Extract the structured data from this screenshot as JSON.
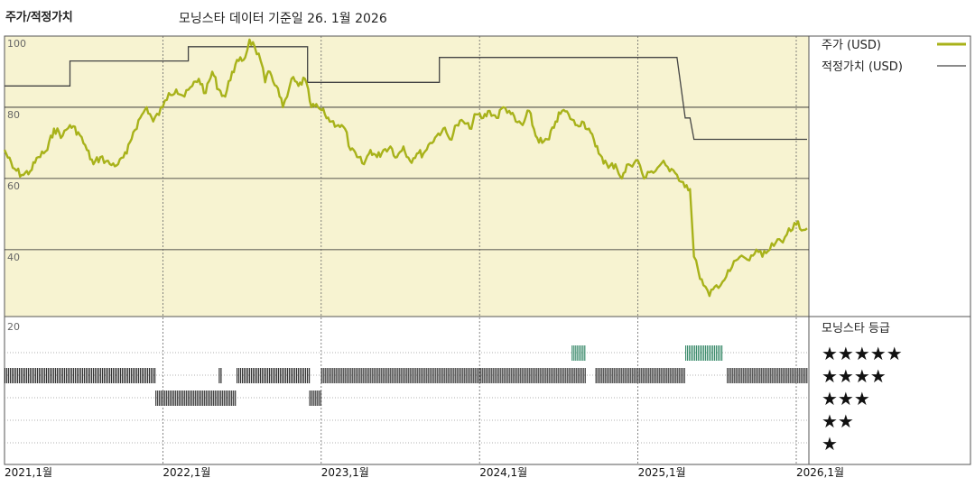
{
  "header": {
    "chart_label": "주가/적정가치",
    "subtitle": "모닝스타 데이터 기준일 26. 1월 2026"
  },
  "legend": {
    "price_label": "주가 (USD)",
    "fair_value_label": "적정가치 (USD)",
    "rating_title": "모닝스타 등급",
    "stars": [
      "★★★★★",
      "★★★★",
      "★★★",
      "★★",
      "★"
    ]
  },
  "colors": {
    "price": "#a8b21a",
    "fair_value": "#444444",
    "upper_bg": "#f7f3d1",
    "rating_dark": "#333333",
    "rating_green": "#3c8c6c"
  },
  "chart_data": {
    "type": "line",
    "title": "주가/적정가치",
    "subtitle": "모닝스타 데이터 기준일 26. 1월 2026",
    "x_ticks": [
      "2021,1월",
      "2022,1월",
      "2023,1월",
      "2024,1월",
      "2025,1월",
      "2026,1월"
    ],
    "y_ticks": [
      100,
      80,
      60,
      40,
      20
    ],
    "ylim": [
      20,
      100
    ],
    "xlim": [
      "2021-01",
      "2026-01"
    ],
    "grid": true,
    "legend_position": "right",
    "series": [
      {
        "name": "주가 (USD)",
        "style": "line",
        "points": [
          [
            "2021-01-01",
            68
          ],
          [
            "2021-01-20",
            63
          ],
          [
            "2021-02-10",
            61
          ],
          [
            "2021-03-01",
            62
          ],
          [
            "2021-03-20",
            66
          ],
          [
            "2021-04-10",
            68
          ],
          [
            "2021-04-25",
            74
          ],
          [
            "2021-05-15",
            72
          ],
          [
            "2021-06-01",
            75
          ],
          [
            "2021-06-20",
            73
          ],
          [
            "2021-07-10",
            68
          ],
          [
            "2021-07-25",
            64
          ],
          [
            "2021-08-10",
            66
          ],
          [
            "2021-09-01",
            64
          ],
          [
            "2021-09-20",
            64
          ],
          [
            "2021-10-10",
            67
          ],
          [
            "2021-10-25",
            73
          ],
          [
            "2021-11-10",
            77
          ],
          [
            "2021-11-25",
            80
          ],
          [
            "2021-12-10",
            76
          ],
          [
            "2022-01-01",
            80
          ],
          [
            "2022-01-15",
            84
          ],
          [
            "2022-02-01",
            85
          ],
          [
            "2022-02-20",
            83
          ],
          [
            "2022-03-10",
            86
          ],
          [
            "2022-03-25",
            88
          ],
          [
            "2022-04-10",
            84
          ],
          [
            "2022-04-25",
            90
          ],
          [
            "2022-05-10",
            85
          ],
          [
            "2022-05-25",
            83
          ],
          [
            "2022-06-10",
            90
          ],
          [
            "2022-06-25",
            93
          ],
          [
            "2022-07-10",
            94
          ],
          [
            "2022-07-20",
            99
          ],
          [
            "2022-08-01",
            97
          ],
          [
            "2022-08-15",
            93
          ],
          [
            "2022-08-25",
            87
          ],
          [
            "2022-09-05",
            90
          ],
          [
            "2022-09-20",
            86
          ],
          [
            "2022-10-05",
            80
          ],
          [
            "2022-10-15",
            83
          ],
          [
            "2022-10-25",
            88
          ],
          [
            "2022-11-10",
            86
          ],
          [
            "2022-11-25",
            88
          ],
          [
            "2022-12-10",
            80
          ],
          [
            "2022-12-25",
            80
          ],
          [
            "2023-01-10",
            78
          ],
          [
            "2023-01-25",
            76
          ],
          [
            "2023-02-10",
            75
          ],
          [
            "2023-02-25",
            74
          ],
          [
            "2023-03-10",
            68
          ],
          [
            "2023-03-25",
            66
          ],
          [
            "2023-04-10",
            64
          ],
          [
            "2023-04-25",
            68
          ],
          [
            "2023-05-10",
            66
          ],
          [
            "2023-05-25",
            68
          ],
          [
            "2023-06-10",
            69
          ],
          [
            "2023-06-25",
            66
          ],
          [
            "2023-07-10",
            69
          ],
          [
            "2023-07-25",
            65
          ],
          [
            "2023-08-10",
            67
          ],
          [
            "2023-08-25",
            67
          ],
          [
            "2023-09-10",
            70
          ],
          [
            "2023-09-25",
            72
          ],
          [
            "2023-10-10",
            74
          ],
          [
            "2023-10-25",
            71
          ],
          [
            "2023-11-10",
            75
          ],
          [
            "2023-11-25",
            76
          ],
          [
            "2023-12-10",
            74
          ],
          [
            "2023-12-25",
            78
          ],
          [
            "2024-01-10",
            77
          ],
          [
            "2024-01-25",
            79
          ],
          [
            "2024-02-10",
            77
          ],
          [
            "2024-02-25",
            80
          ],
          [
            "2024-03-10",
            79
          ],
          [
            "2024-03-25",
            76
          ],
          [
            "2024-04-10",
            75
          ],
          [
            "2024-04-25",
            79
          ],
          [
            "2024-05-10",
            72
          ],
          [
            "2024-05-25",
            70
          ],
          [
            "2024-06-10",
            71
          ],
          [
            "2024-06-25",
            76
          ],
          [
            "2024-07-10",
            79
          ],
          [
            "2024-07-25",
            78
          ],
          [
            "2024-08-10",
            75
          ],
          [
            "2024-08-25",
            76
          ],
          [
            "2024-09-10",
            74
          ],
          [
            "2024-09-25",
            69
          ],
          [
            "2024-10-10",
            66
          ],
          [
            "2024-10-25",
            63
          ],
          [
            "2024-11-10",
            64
          ],
          [
            "2024-11-25",
            60
          ],
          [
            "2024-12-10",
            64
          ],
          [
            "2025-01-01",
            65
          ],
          [
            "2025-01-15",
            60
          ],
          [
            "2025-02-01",
            62
          ],
          [
            "2025-02-15",
            63
          ],
          [
            "2025-03-01",
            65
          ],
          [
            "2025-03-15",
            62
          ],
          [
            "2025-04-01",
            61
          ],
          [
            "2025-04-15",
            59
          ],
          [
            "2025-05-01",
            57
          ],
          [
            "2025-05-10",
            38
          ],
          [
            "2025-05-20",
            34
          ],
          [
            "2025-06-01",
            30
          ],
          [
            "2025-06-15",
            27
          ],
          [
            "2025-07-01",
            30
          ],
          [
            "2025-07-15",
            31
          ],
          [
            "2025-08-01",
            34
          ],
          [
            "2025-08-15",
            37
          ],
          [
            "2025-09-01",
            38
          ],
          [
            "2025-09-15",
            37
          ],
          [
            "2025-10-01",
            40
          ],
          [
            "2025-10-15",
            38
          ],
          [
            "2025-11-01",
            40
          ],
          [
            "2025-11-15",
            42
          ],
          [
            "2025-12-01",
            42
          ],
          [
            "2025-12-15",
            46
          ],
          [
            "2026-01-01",
            47
          ],
          [
            "2026-01-26",
            46
          ]
        ]
      },
      {
        "name": "적정가치 (USD)",
        "style": "step",
        "points": [
          [
            "2021-01-01",
            86
          ],
          [
            "2021-06-01",
            86
          ],
          [
            "2021-06-01",
            93
          ],
          [
            "2022-03-01",
            93
          ],
          [
            "2022-03-01",
            97
          ],
          [
            "2022-12-01",
            97
          ],
          [
            "2022-12-01",
            87
          ],
          [
            "2023-10-01",
            87
          ],
          [
            "2023-10-01",
            94
          ],
          [
            "2025-04-01",
            94
          ],
          [
            "2025-04-20",
            77
          ],
          [
            "2025-05-01",
            77
          ],
          [
            "2025-05-10",
            71
          ],
          [
            "2026-01-26",
            71
          ]
        ]
      }
    ],
    "rating_panel": {
      "title": "모닝스타 등급",
      "levels": [
        "★★★★★",
        "★★★★",
        "★★★",
        "★★",
        "★"
      ],
      "segments": [
        {
          "start": "2021-01-01",
          "end": "2021-12-15",
          "stars": 4
        },
        {
          "start": "2021-12-15",
          "end": "2022-06-20",
          "stars": 3
        },
        {
          "start": "2022-05-10",
          "end": "2022-05-15",
          "stars": 4
        },
        {
          "start": "2022-06-20",
          "end": "2022-12-05",
          "stars": 4
        },
        {
          "start": "2022-12-05",
          "end": "2023-01-01",
          "stars": 3
        },
        {
          "start": "2023-01-01",
          "end": "2024-09-01",
          "stars": 4
        },
        {
          "start": "2024-08-01",
          "end": "2024-09-01",
          "stars": 5
        },
        {
          "start": "2024-09-25",
          "end": "2025-04-20",
          "stars": 4
        },
        {
          "start": "2025-04-20",
          "end": "2025-07-15",
          "stars": 5
        },
        {
          "start": "2025-07-25",
          "end": "2026-01-26",
          "stars": 4
        }
      ]
    }
  }
}
